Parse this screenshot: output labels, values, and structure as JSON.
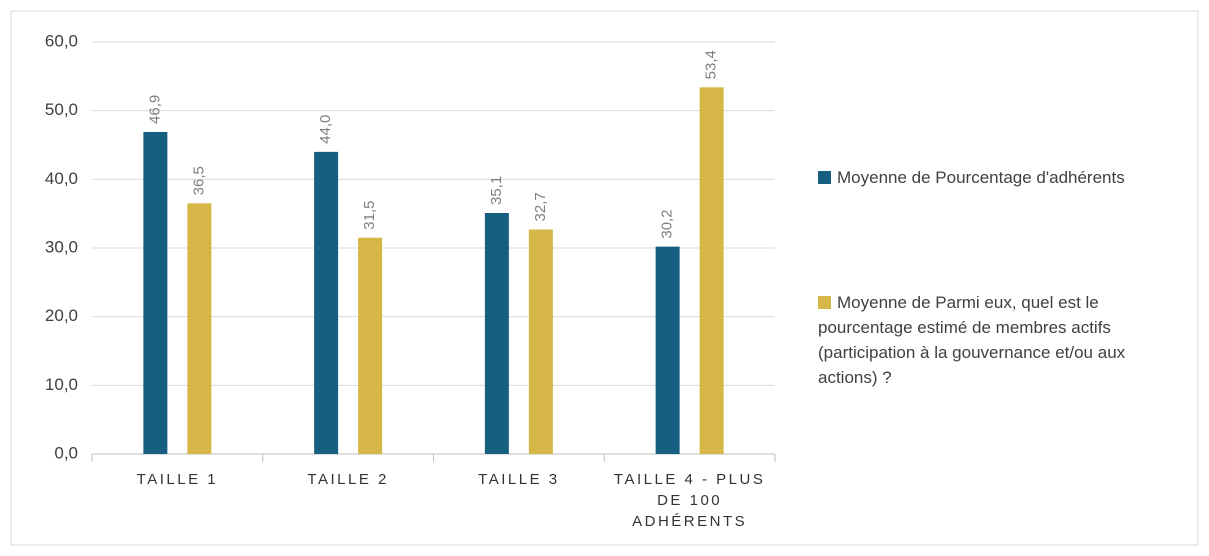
{
  "chart_data": {
    "type": "bar",
    "categories": [
      "TAILLE 1",
      "TAILLE 2",
      "TAILLE 3",
      "TAILLE 4 - PLUS DE 100 ADHÉRENTS"
    ],
    "series": [
      {
        "name": "Moyenne de Pourcentage d'adhérents",
        "color": "#175f80",
        "values": [
          46.9,
          44.0,
          35.1,
          30.2
        ],
        "value_labels": [
          "46,9",
          "44,0",
          "35,1",
          "30,2"
        ]
      },
      {
        "name": "Moyenne de Parmi eux, quel est le pourcentage estimé de membres actifs (participation à la gouvernance et/ou aux actions) ?",
        "color": "#d6b646",
        "values": [
          36.5,
          31.5,
          32.7,
          53.4
        ],
        "value_labels": [
          "36,5",
          "31,5",
          "32,7",
          "53,4"
        ]
      }
    ],
    "ylim": [
      0,
      60
    ],
    "yticks": [
      {
        "value": 0,
        "label": "0,0"
      },
      {
        "value": 10,
        "label": "10,0"
      },
      {
        "value": 20,
        "label": "20,0"
      },
      {
        "value": 30,
        "label": "30,0"
      },
      {
        "value": 40,
        "label": "40,0"
      },
      {
        "value": 50,
        "label": "50,0"
      },
      {
        "value": 60,
        "label": "60,0"
      }
    ],
    "grid": true,
    "legend": "right"
  }
}
